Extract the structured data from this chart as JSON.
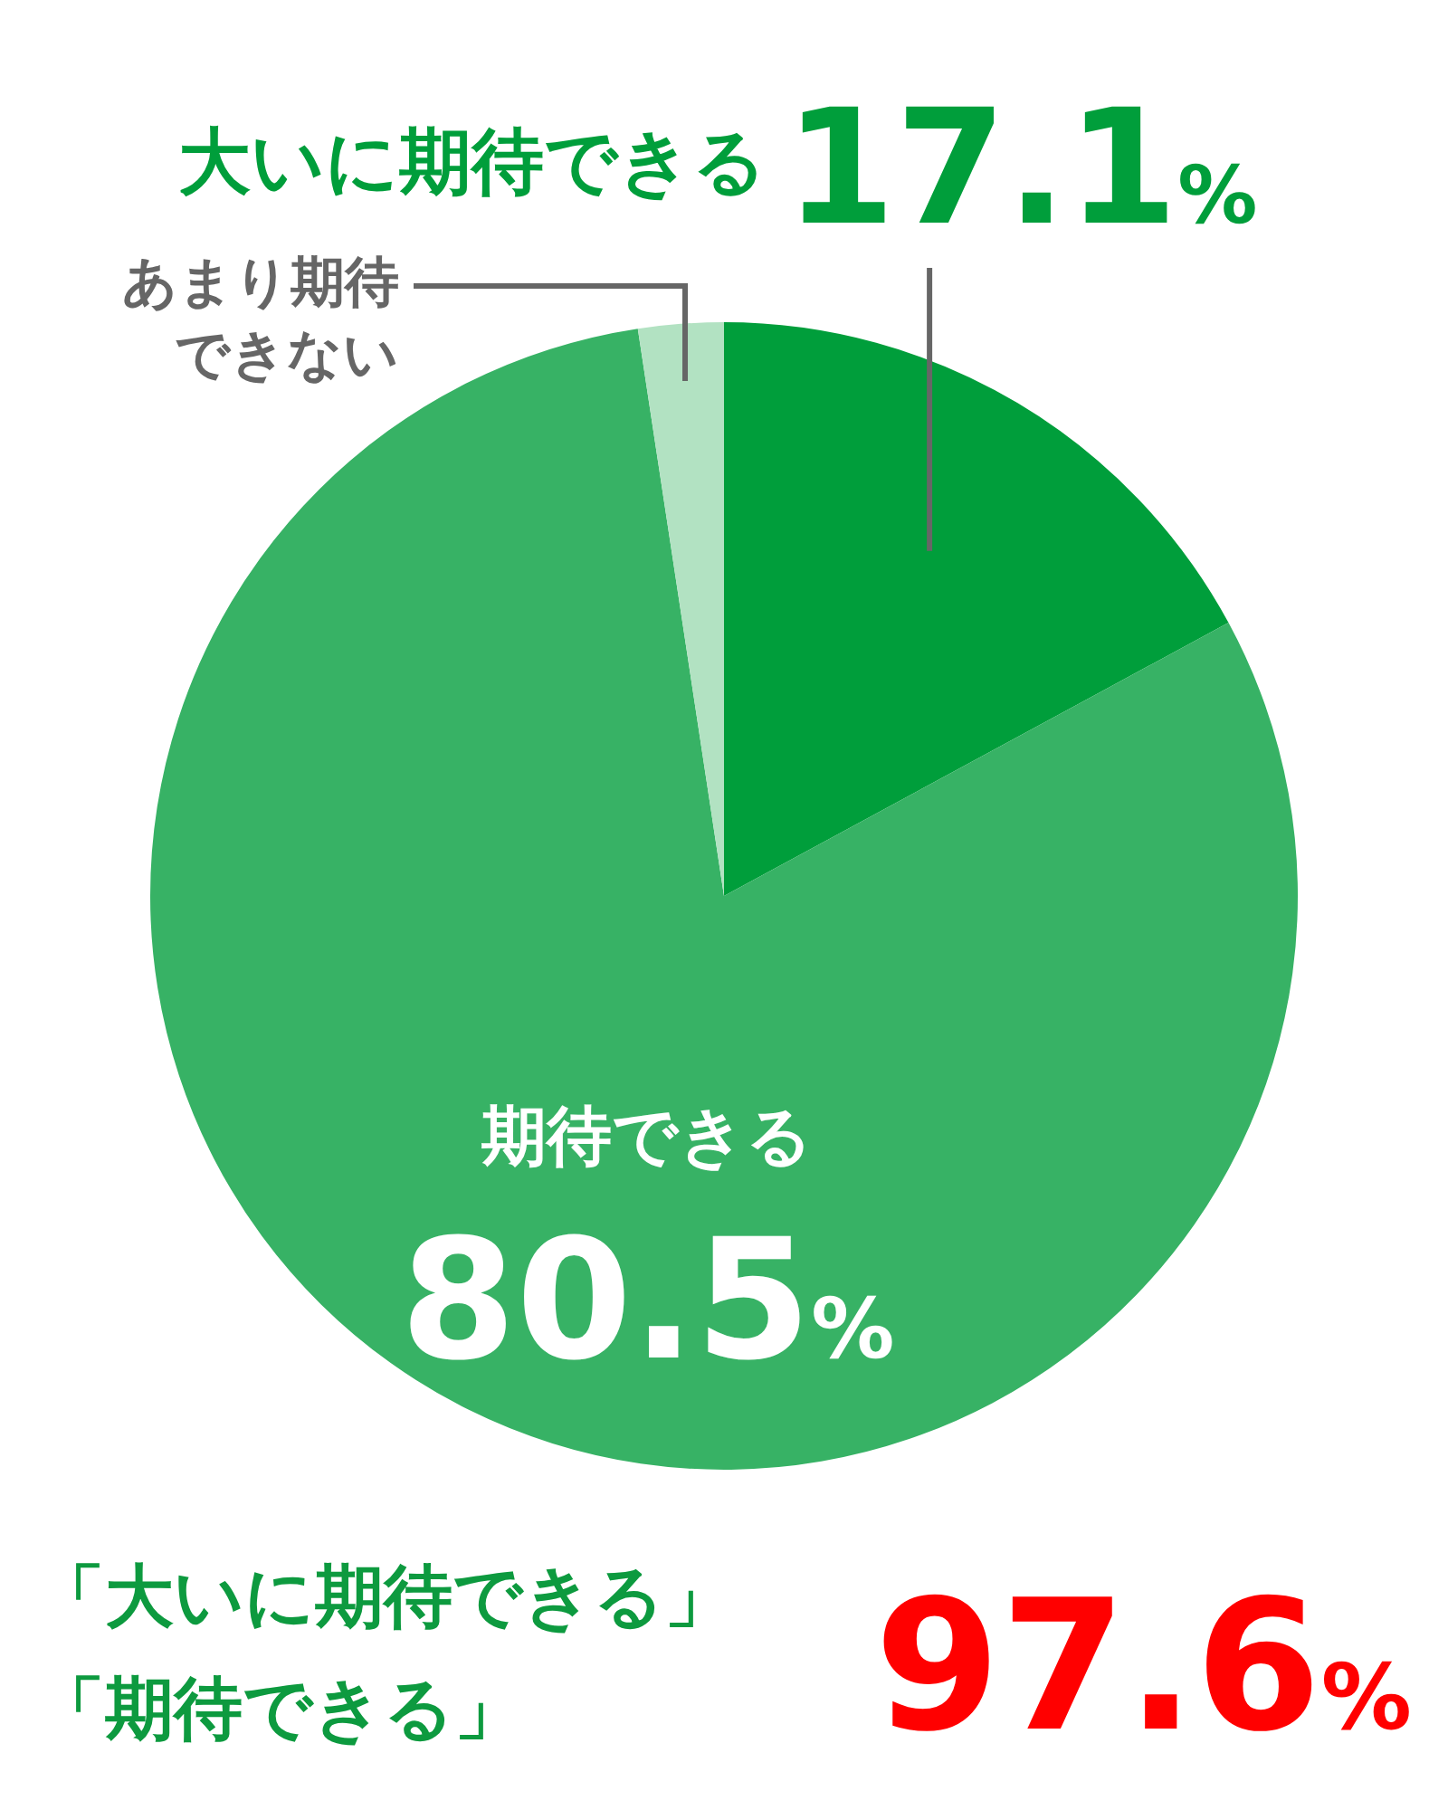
{
  "chart_data": {
    "type": "pie",
    "categories": [
      "大いに期待できる",
      "期待できる",
      "あまり期待できない"
    ],
    "values": [
      17.1,
      80.5,
      2.4
    ],
    "colors": [
      "#009e3b",
      "#37b265",
      "#b2e2c2"
    ],
    "value_labels": [
      "17.1%",
      "80.5%",
      null
    ],
    "legend": false,
    "annotations": [
      "「大いに期待できる」「期待できる」",
      "97.6%"
    ]
  }
}
